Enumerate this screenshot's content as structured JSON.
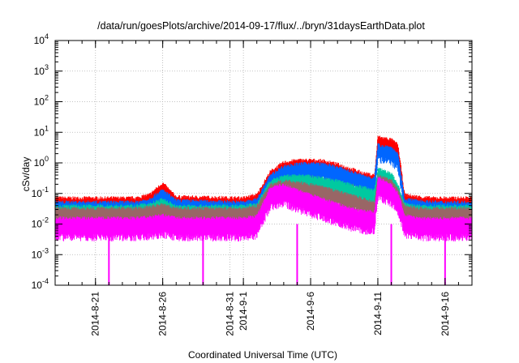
{
  "chart_data": {
    "type": "line",
    "title": "/data/run/goesPlots/archive/2014-09-17/flux/../bryn/31daysEarthData.plot",
    "xlabel": "Coordinated Universal Time (UTC)",
    "ylabel": "cSv/day",
    "yscale": "log",
    "ylim": [
      0.0001,
      10000
    ],
    "xlim": [
      "2014-08-18",
      "2014-09-18"
    ],
    "grid": true,
    "y_ticks": [
      {
        "base": "10",
        "exp": "-4"
      },
      {
        "base": "10",
        "exp": "-3"
      },
      {
        "base": "10",
        "exp": "-2"
      },
      {
        "base": "10",
        "exp": "-1"
      },
      {
        "base": "10",
        "exp": "0"
      },
      {
        "base": "10",
        "exp": "1"
      },
      {
        "base": "10",
        "exp": "2"
      },
      {
        "base": "10",
        "exp": "3"
      },
      {
        "base": "10",
        "exp": "4"
      }
    ],
    "x_ticks": [
      {
        "date": "2014-08-21",
        "label": "2014-8-21"
      },
      {
        "date": "2014-08-26",
        "label": "2014-8-26"
      },
      {
        "date": "2014-08-31",
        "label": "2014-8-31"
      },
      {
        "date": "2014-09-01",
        "label": "2014-9-1"
      },
      {
        "date": "2014-09-06",
        "label": "2014-9-6"
      },
      {
        "date": "2014-09-11",
        "label": "2014-9-11"
      },
      {
        "date": "2014-09-16",
        "label": "2014-9-16"
      }
    ],
    "series": [
      {
        "color": "#ff0000",
        "x": [
          "2014-08-18",
          "2014-08-24",
          "2014-08-25",
          "2014-08-26",
          "2014-08-27",
          "2014-09-01",
          "2014-09-02",
          "2014-09-03",
          "2014-09-04",
          "2014-09-05",
          "2014-09-06",
          "2014-09-07",
          "2014-09-08",
          "2014-09-09",
          "2014-09-10",
          "2014-09-10T18:00",
          "2014-09-11",
          "2014-09-12",
          "2014-09-12T12:00",
          "2014-09-13",
          "2014-09-14",
          "2014-09-15",
          "2014-09-18"
        ],
        "values": [
          0.055,
          0.055,
          0.07,
          0.17,
          0.06,
          0.055,
          0.07,
          0.4,
          0.8,
          0.95,
          0.95,
          0.9,
          0.7,
          0.5,
          0.35,
          0.3,
          5.5,
          4.5,
          3.0,
          0.07,
          0.06,
          0.055,
          0.055
        ]
      },
      {
        "color": "#0066ff",
        "x": [
          "2014-08-18",
          "2014-08-24",
          "2014-08-25",
          "2014-08-26",
          "2014-08-27",
          "2014-09-01",
          "2014-09-02",
          "2014-09-03",
          "2014-09-04",
          "2014-09-05",
          "2014-09-06",
          "2014-09-07",
          "2014-09-08",
          "2014-09-09",
          "2014-09-10",
          "2014-09-10T18:00",
          "2014-09-11",
          "2014-09-12",
          "2014-09-12T12:00",
          "2014-09-13",
          "2014-09-14",
          "2014-09-15",
          "2014-09-18"
        ],
        "values": [
          0.04,
          0.04,
          0.05,
          0.1,
          0.045,
          0.04,
          0.05,
          0.3,
          0.6,
          0.7,
          0.75,
          0.7,
          0.55,
          0.4,
          0.28,
          0.25,
          3.0,
          2.5,
          1.5,
          0.05,
          0.045,
          0.04,
          0.04
        ]
      },
      {
        "color": "#00c9a0",
        "x": [
          "2014-08-18",
          "2014-08-24",
          "2014-08-25",
          "2014-08-26",
          "2014-08-27",
          "2014-09-01",
          "2014-09-02",
          "2014-09-03",
          "2014-09-04",
          "2014-09-05",
          "2014-09-06",
          "2014-09-07",
          "2014-09-08",
          "2014-09-09",
          "2014-09-10",
          "2014-09-10T18:00",
          "2014-09-11",
          "2014-09-12",
          "2014-09-12T12:00",
          "2014-09-13",
          "2014-09-14",
          "2014-09-15",
          "2014-09-18"
        ],
        "values": [
          0.03,
          0.03,
          0.035,
          0.05,
          0.03,
          0.03,
          0.035,
          0.2,
          0.28,
          0.3,
          0.28,
          0.24,
          0.2,
          0.15,
          0.12,
          0.1,
          0.5,
          0.35,
          0.15,
          0.035,
          0.03,
          0.03,
          0.03
        ]
      },
      {
        "color": "#996666",
        "x": [
          "2014-08-18",
          "2014-08-24",
          "2014-08-25",
          "2014-08-26",
          "2014-08-27",
          "2014-09-01",
          "2014-09-02",
          "2014-09-03",
          "2014-09-04",
          "2014-09-05",
          "2014-09-06",
          "2014-09-07",
          "2014-09-08",
          "2014-09-09",
          "2014-09-10",
          "2014-09-10T18:00",
          "2014-09-11",
          "2014-09-12",
          "2014-09-12T12:00",
          "2014-09-13",
          "2014-09-14",
          "2014-09-15",
          "2014-09-18"
        ],
        "values": [
          0.025,
          0.025,
          0.028,
          0.035,
          0.025,
          0.025,
          0.03,
          0.15,
          0.2,
          0.18,
          0.15,
          0.12,
          0.09,
          0.07,
          0.05,
          0.04,
          0.3,
          0.2,
          0.1,
          0.03,
          0.025,
          0.025,
          0.025
        ]
      },
      {
        "color": "#ff00ff",
        "x": [
          "2014-08-18",
          "2014-08-24",
          "2014-08-25",
          "2014-08-26",
          "2014-08-27",
          "2014-09-01",
          "2014-09-02",
          "2014-09-03",
          "2014-09-04",
          "2014-09-05",
          "2014-09-06",
          "2014-09-07",
          "2014-09-08",
          "2014-09-09",
          "2014-09-10",
          "2014-09-10T18:00",
          "2014-09-11",
          "2014-09-12",
          "2014-09-12T12:00",
          "2014-09-13",
          "2014-09-14",
          "2014-09-15",
          "2014-09-18"
        ],
        "values": [
          0.012,
          0.012,
          0.013,
          0.015,
          0.012,
          0.012,
          0.014,
          0.12,
          0.15,
          0.1,
          0.07,
          0.05,
          0.035,
          0.025,
          0.02,
          0.02,
          0.25,
          0.15,
          0.08,
          0.015,
          0.012,
          0.012,
          0.012
        ]
      }
    ],
    "dropouts": [
      {
        "series_color": "#ff00ff",
        "x": "2014-08-22",
        "value": 0.0001
      },
      {
        "series_color": "#ff00ff",
        "x": "2014-08-29",
        "value": 0.0001
      },
      {
        "series_color": "#ff00ff",
        "x": "2014-09-05",
        "value": 0.0001
      },
      {
        "series_color": "#ff00ff",
        "x": "2014-09-12",
        "value": 0.0001
      },
      {
        "series_color": "#ff00ff",
        "x": "2014-09-16",
        "value": 0.0001
      }
    ]
  }
}
